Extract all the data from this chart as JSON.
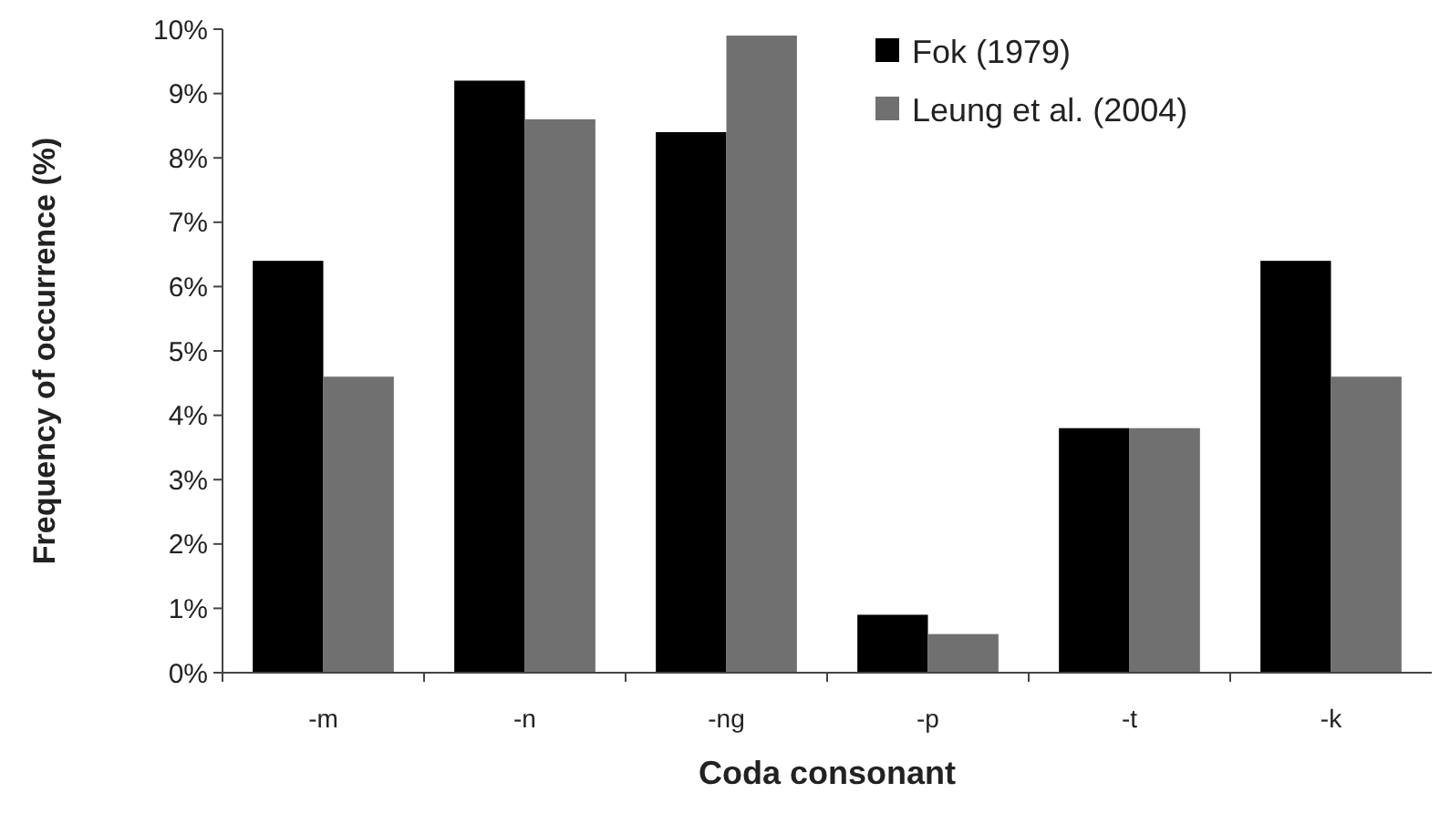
{
  "chart_data": {
    "type": "bar",
    "xlabel": "Coda consonant",
    "ylabel": "Frequency of occurrence (%)",
    "categories": [
      "-m",
      "-n",
      "-ng",
      "-p",
      "-t",
      "-k"
    ],
    "series": [
      {
        "name": "Fok (1979)",
        "color": "#000000",
        "values": [
          6.4,
          9.2,
          8.4,
          0.9,
          3.8,
          6.4
        ]
      },
      {
        "name": "Leung et al. (2004)",
        "color": "#707070",
        "values": [
          4.6,
          8.6,
          9.9,
          0.6,
          3.8,
          4.6
        ]
      }
    ],
    "ylim": [
      0,
      10
    ],
    "yticks": [
      {
        "value": 0,
        "label": "0%"
      },
      {
        "value": 1,
        "label": "1%"
      },
      {
        "value": 2,
        "label": "2%"
      },
      {
        "value": 3,
        "label": "3%"
      },
      {
        "value": 4,
        "label": "4%"
      },
      {
        "value": 5,
        "label": "5%"
      },
      {
        "value": 6,
        "label": "6%"
      },
      {
        "value": 7,
        "label": "7%"
      },
      {
        "value": 8,
        "label": "8%"
      },
      {
        "value": 9,
        "label": "9%"
      },
      {
        "value": 10,
        "label": "10%"
      }
    ],
    "grid": false,
    "legend": "top right"
  }
}
